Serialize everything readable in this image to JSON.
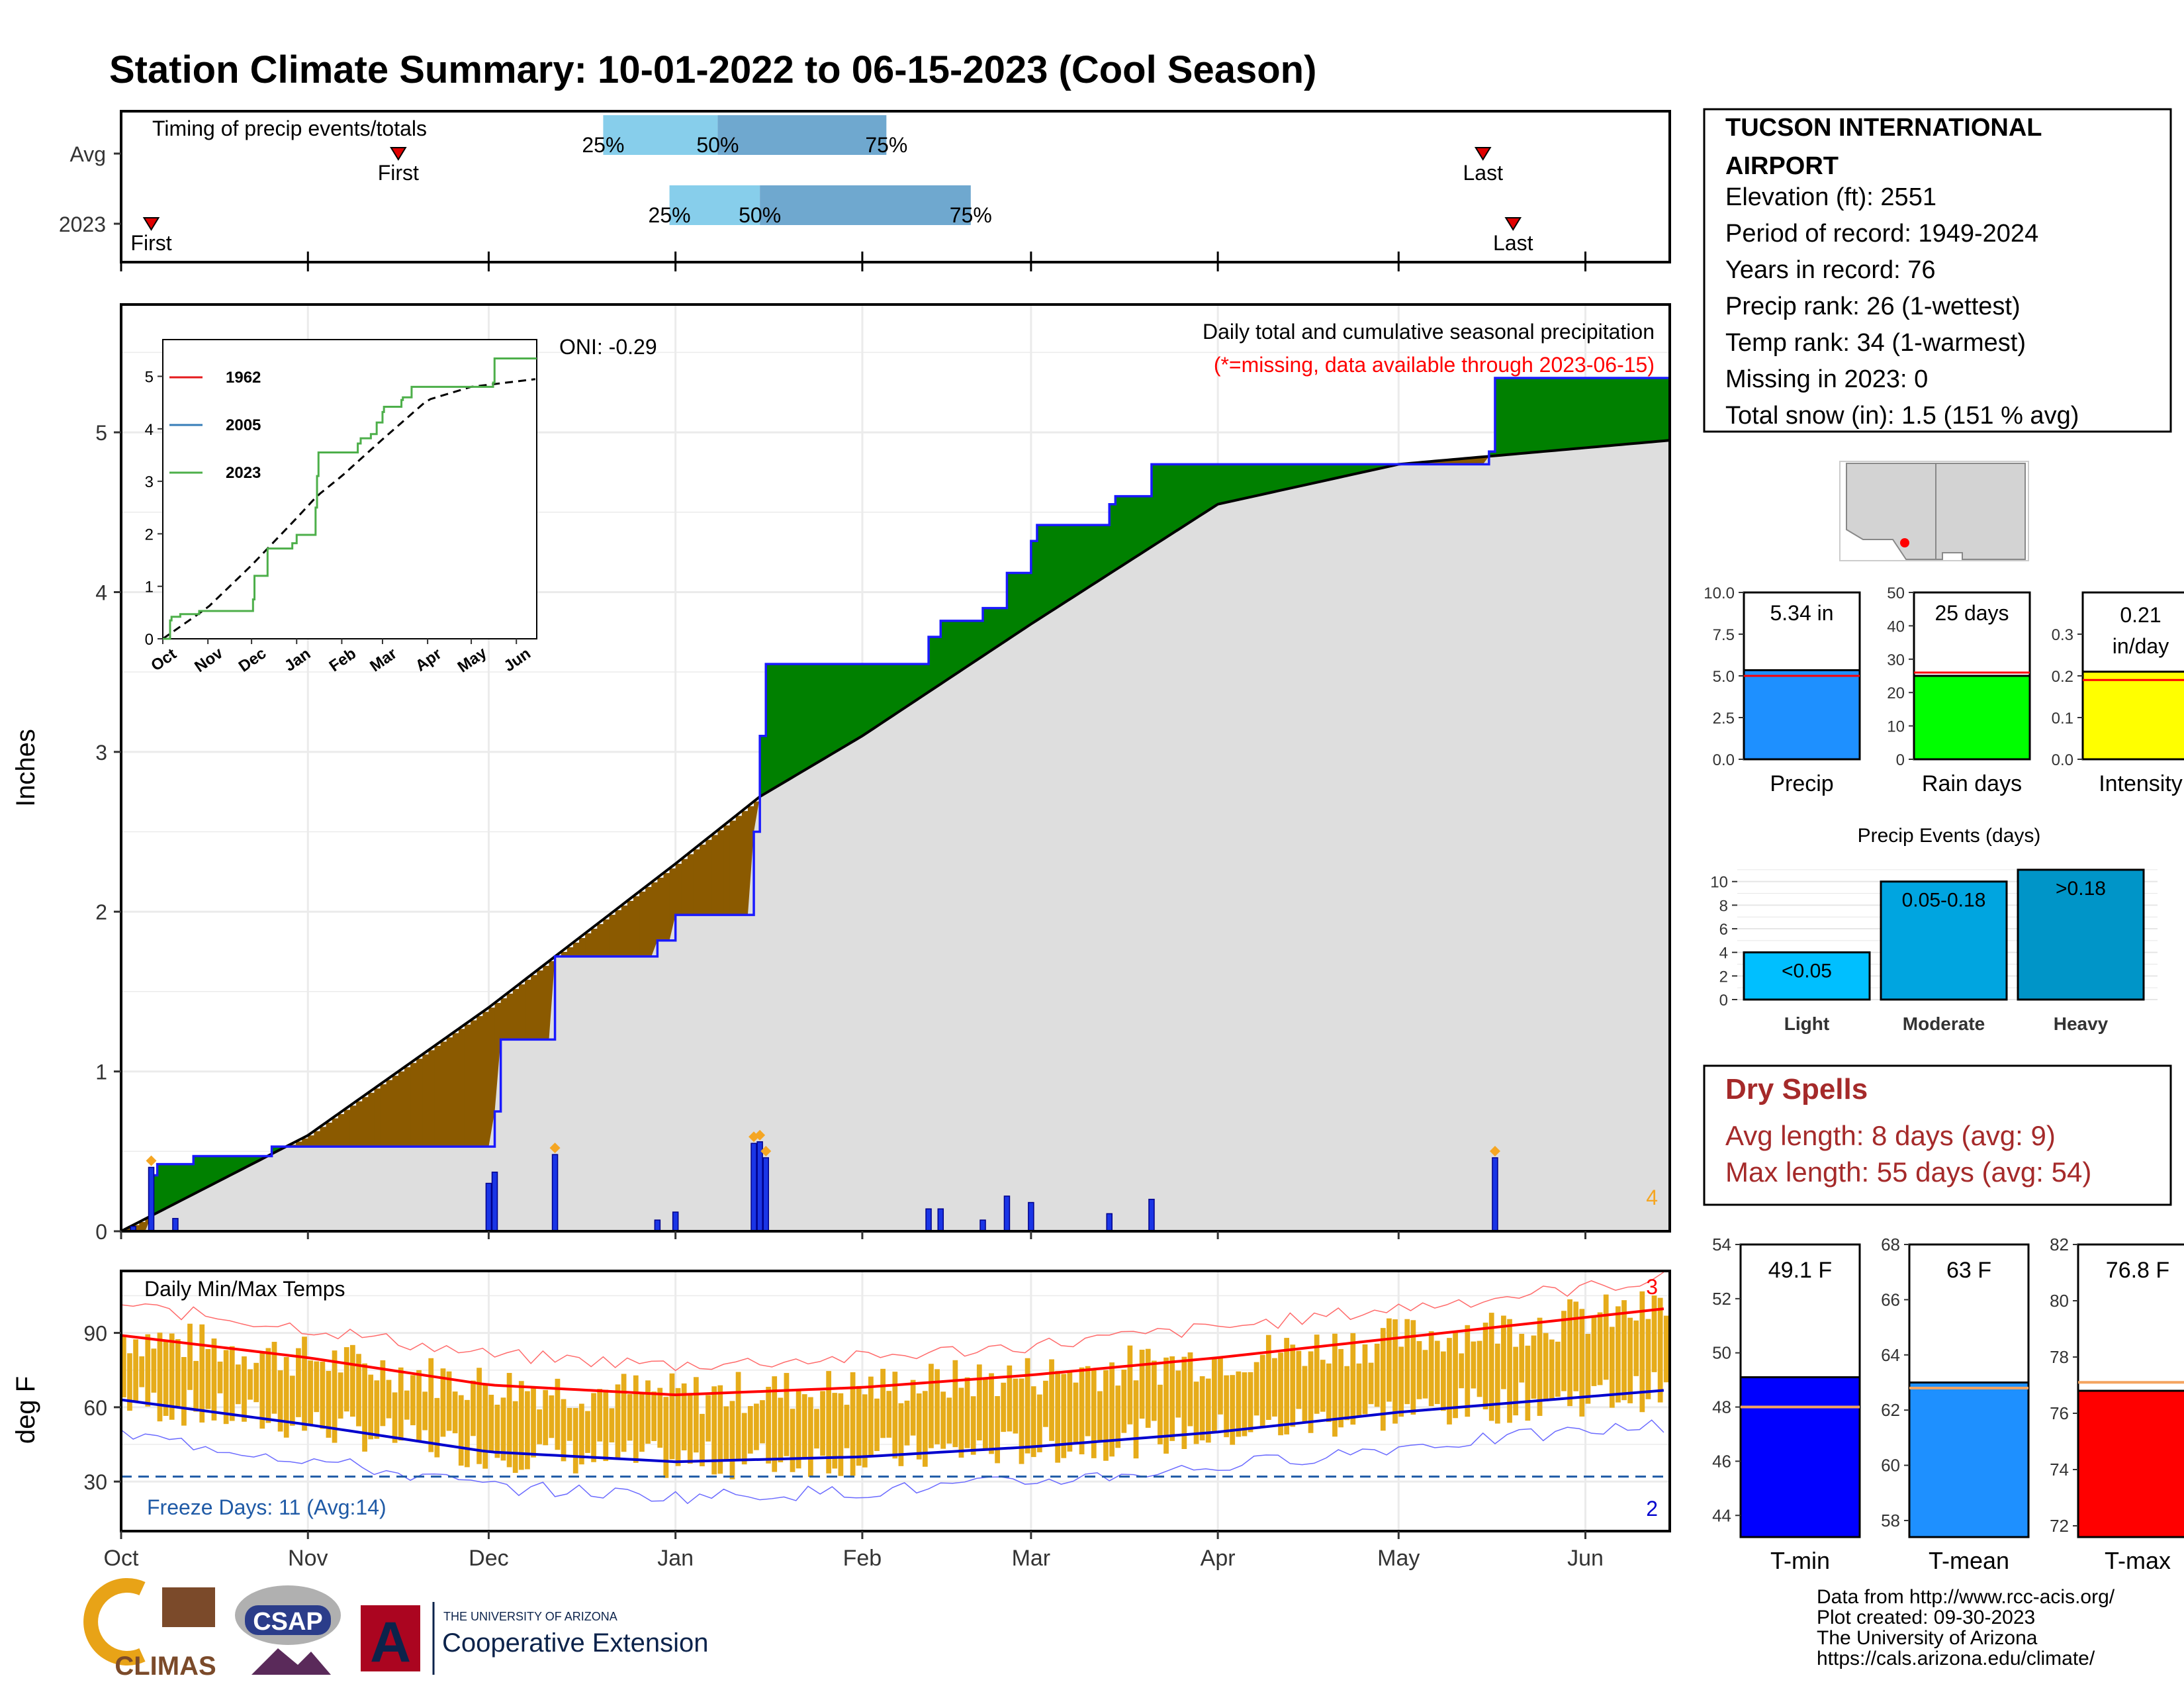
{
  "title": "Station Climate Summary: 10-01-2022 to 06-15-2023 (Cool Season)",
  "colors": {
    "title": "#2b3d8a",
    "precip_fill": "#dedede",
    "surplus": "#008000",
    "deficit": "#8b5a00",
    "daily_bar": "#1a35e6",
    "timing_light": "#87ceeb",
    "timing_dark": "#6fa8cf",
    "temp_bar": "#e6ac1a",
    "normal_max": "#ff0000",
    "normal_min": "#0000cd",
    "dry_spells": "#a52a2a",
    "red_text": "#ff0000"
  },
  "timing": {
    "title": "Timing of precip events/totals",
    "rows": [
      {
        "label": "Avg",
        "first": "Nov 16",
        "p25": "Dec 20",
        "p50": "Jan 8",
        "p75": "Feb 5",
        "last": "May 15"
      },
      {
        "label": "2023",
        "first": "Oct 6",
        "p25": "Dec 31",
        "p50": "Jan 15",
        "p75": "Feb 19",
        "last": "May 20"
      }
    ],
    "first_label": "First",
    "last_label": "Last",
    "p25_label": "25%",
    "p50_label": "50%",
    "p75_label": "75%"
  },
  "precip_panel": {
    "ylabel": "Inches",
    "y_ticks": [
      "0",
      "1",
      "2",
      "3",
      "4",
      "5"
    ],
    "oni": "ONI: -0.29",
    "legend_title": "Daily total and cumulative seasonal precipitation",
    "missing_note": "(*=missing, data available through 2023-06-15)",
    "extreme_count": "4"
  },
  "inset": {
    "y_ticks": [
      "0",
      "1",
      "2",
      "3",
      "4",
      "5"
    ],
    "x_ticks": [
      "Oct",
      "Nov",
      "Dec",
      "Jan",
      "Feb",
      "Mar",
      "Apr",
      "May",
      "Jun"
    ],
    "legend": [
      {
        "name": "1962",
        "color": "#e41a1c"
      },
      {
        "name": "2005",
        "color": "#377eb8"
      },
      {
        "name": "2023",
        "color": "#4daf4a"
      }
    ]
  },
  "temp_panel": {
    "title": "Daily Min/Max Temps",
    "ylabel": "deg F",
    "y_ticks": [
      "30",
      "60",
      "90"
    ],
    "freeze_days": "Freeze Days: 11 (Avg:14)",
    "max_record_count": "3",
    "min_record_count": "2",
    "x_ticks": [
      "Oct",
      "Nov",
      "Dec",
      "Jan",
      "Feb",
      "Mar",
      "Apr",
      "May",
      "Jun"
    ]
  },
  "station": {
    "name_line1": "TUCSON INTERNATIONAL",
    "name_line2": "AIRPORT",
    "lines": [
      "Elevation (ft): 2551",
      "Period of record: 1949-2024",
      "Years in record: 76",
      "Precip rank: 26 (1-wettest)",
      "Temp rank: 34 (1-warmest)",
      "Missing in 2023: 0",
      "Total snow (in): 1.5 (151 % avg)"
    ]
  },
  "summary_bars": [
    {
      "label": "Precip",
      "value_label": "5.34 in",
      "value": 5.34,
      "avg": 5.0,
      "ymax": 10.0,
      "ticks": [
        "0.0",
        "2.5",
        "5.0",
        "7.5",
        "10.0"
      ],
      "color": "#1e90ff"
    },
    {
      "label": "Rain days",
      "value_label": "25 days",
      "value": 25,
      "avg": 26,
      "ymax": 50,
      "ticks": [
        "0",
        "10",
        "20",
        "30",
        "40",
        "50"
      ],
      "color": "#00ff00"
    },
    {
      "label": "Intensity",
      "value_label_1": "0.21",
      "value_label_2": "in/day",
      "value": 0.21,
      "avg": 0.19,
      "ymax": 0.4,
      "ticks": [
        "0.0",
        "0.1",
        "0.2",
        "0.3"
      ],
      "color": "#ffff00"
    }
  ],
  "events": {
    "title": "Precip Events (days)",
    "y_ticks": [
      "0",
      "2",
      "4",
      "6",
      "8",
      "10"
    ],
    "bars": [
      {
        "label": "Light",
        "bar_label": "<0.05",
        "value": 4,
        "color": "#00bfff"
      },
      {
        "label": "Moderate",
        "bar_label": "0.05-0.18",
        "value": 10,
        "color": "#00a5e0"
      },
      {
        "label": "Heavy",
        "bar_label": ">0.18",
        "value": 11,
        "color": "#0095c8"
      }
    ]
  },
  "dry_spells": {
    "title": "Dry Spells",
    "avg": "Avg length: 8 days (avg: 9)",
    "max": "Max length: 55 days (avg: 54)"
  },
  "temp_bars": [
    {
      "label": "T-min",
      "value_label": "49.1 F",
      "value": 49.1,
      "avg": 48.0,
      "ymin": 43.2,
      "ymax": 54,
      "ticks": [
        "44",
        "46",
        "48",
        "50",
        "52",
        "54"
      ],
      "color": "#0000ff"
    },
    {
      "label": "T-mean",
      "value_label": "63 F",
      "value": 63.0,
      "avg": 62.8,
      "ymin": 57.4,
      "ymax": 68,
      "ticks": [
        "58",
        "60",
        "62",
        "64",
        "66",
        "68"
      ],
      "color": "#1e90ff"
    },
    {
      "label": "T-max",
      "value_label": "76.8 F",
      "value": 76.8,
      "avg": 77.1,
      "ymin": 71.6,
      "ymax": 82,
      "ticks": [
        "72",
        "74",
        "76",
        "78",
        "80",
        "82"
      ],
      "color": "#ff0000"
    }
  ],
  "footer": {
    "lines": [
      "Data from http://www.rcc-acis.org/",
      "Plot created: 09-30-2023",
      "The University of Arizona",
      "https://cals.arizona.edu/climate/"
    ],
    "climas": "CLIMAS",
    "csap": "CSAP",
    "ua_small": "THE UNIVERSITY OF ARIZONA",
    "ua_big": "Cooperative Extension"
  },
  "chart_data": {
    "type": "area",
    "title": "Station Climate Summary: 10-01-2022 to 06-15-2023 (Cool Season)",
    "ylabel": "Inches",
    "ylim": [
      0,
      5.8
    ],
    "x_range": [
      "2022-10-01",
      "2023-06-15"
    ],
    "series": [
      {
        "name": "cumulative 2023",
        "x": [
          "2022-10-01",
          "2022-10-06",
          "2022-10-07",
          "2022-10-13",
          "2022-10-26",
          "2022-12-01",
          "2022-12-02",
          "2022-12-03",
          "2022-12-12",
          "2022-12-29",
          "2023-01-01",
          "2023-01-14",
          "2023-01-15",
          "2023-01-16",
          "2023-02-12",
          "2023-02-14",
          "2023-02-21",
          "2023-02-25",
          "2023-03-01",
          "2023-03-02",
          "2023-03-14",
          "2023-03-15",
          "2023-03-21",
          "2023-05-16",
          "2023-05-17",
          "2023-06-15"
        ],
        "values": [
          0.0,
          0.35,
          0.42,
          0.47,
          0.53,
          0.53,
          0.75,
          1.2,
          1.72,
          1.82,
          1.98,
          2.5,
          3.1,
          3.55,
          3.72,
          3.82,
          3.9,
          4.12,
          4.32,
          4.42,
          4.55,
          4.6,
          4.8,
          4.88,
          5.34,
          5.34
        ]
      },
      {
        "name": "avg cumulative",
        "x": [
          "2022-10-01",
          "2022-11-01",
          "2022-12-01",
          "2023-01-01",
          "2023-01-15",
          "2023-02-01",
          "2023-03-01",
          "2023-04-01",
          "2023-05-01",
          "2023-06-15"
        ],
        "values": [
          0.0,
          0.6,
          1.4,
          2.3,
          2.72,
          3.1,
          3.8,
          4.55,
          4.8,
          4.95
        ]
      }
    ],
    "daily_precip": {
      "x": [
        "2022-10-03",
        "2022-10-06",
        "2022-10-10",
        "2022-12-01",
        "2022-12-02",
        "2022-12-12",
        "2022-12-29",
        "2023-01-01",
        "2023-01-14",
        "2023-01-15",
        "2023-01-16",
        "2023-02-12",
        "2023-02-14",
        "2023-02-21",
        "2023-02-25",
        "2023-03-01",
        "2023-03-14",
        "2023-03-21",
        "2023-05-17"
      ],
      "values": [
        0.03,
        0.4,
        0.08,
        0.3,
        0.37,
        0.48,
        0.07,
        0.12,
        0.55,
        0.56,
        0.46,
        0.14,
        0.14,
        0.07,
        0.22,
        0.18,
        0.11,
        0.2,
        0.46
      ]
    },
    "temperature": {
      "ylim": [
        10,
        115
      ],
      "normal_max_x": [
        "2022-10-01",
        "2022-11-01",
        "2022-12-01",
        "2023-01-01",
        "2023-02-01",
        "2023-03-01",
        "2023-04-01",
        "2023-05-01",
        "2023-06-15"
      ],
      "normal_max": [
        89,
        80,
        69,
        65,
        68,
        73,
        80,
        88,
        100
      ],
      "normal_min": [
        63,
        53,
        42,
        38,
        40,
        44,
        50,
        58,
        67
      ],
      "freeze_line": 32
    }
  }
}
